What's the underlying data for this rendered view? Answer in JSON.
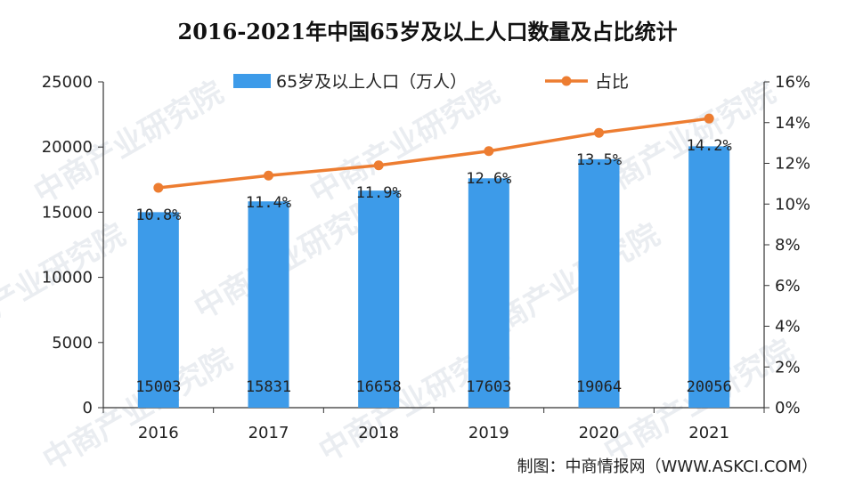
{
  "chart_data": {
    "type": "bar",
    "title": "2016-2021年中国65岁及以上人口数量及占比统计",
    "categories": [
      "2016",
      "2017",
      "2018",
      "2019",
      "2020",
      "2021"
    ],
    "series": [
      {
        "name": "65岁及以上人口（万人）",
        "type": "bar",
        "axis": "left",
        "color": "#3d9be9",
        "values": [
          15003,
          15831,
          16658,
          17603,
          19064,
          20056
        ],
        "labels": [
          "15003",
          "15831",
          "16658",
          "17603",
          "19064",
          "20056"
        ]
      },
      {
        "name": "占比",
        "type": "line",
        "axis": "right",
        "color": "#ed7d31",
        "values": [
          10.8,
          11.4,
          11.9,
          12.6,
          13.5,
          14.2
        ],
        "labels": [
          "10.8%",
          "11.4%",
          "11.9%",
          "12.6%",
          "13.5%",
          "14.2%"
        ]
      }
    ],
    "ylim": [
      0,
      25000
    ],
    "yticks": [
      "0",
      "5000",
      "10000",
      "15000",
      "20000",
      "25000"
    ],
    "y2lim": [
      0,
      16
    ],
    "y2ticks": [
      "0%",
      "2%",
      "4%",
      "6%",
      "8%",
      "10%",
      "12%",
      "14%",
      "16%"
    ],
    "grid": false,
    "legend_position": "top"
  },
  "source": "制图：中商情报网（WWW.ASKCI.COM）",
  "watermark": "中商产业研究院"
}
